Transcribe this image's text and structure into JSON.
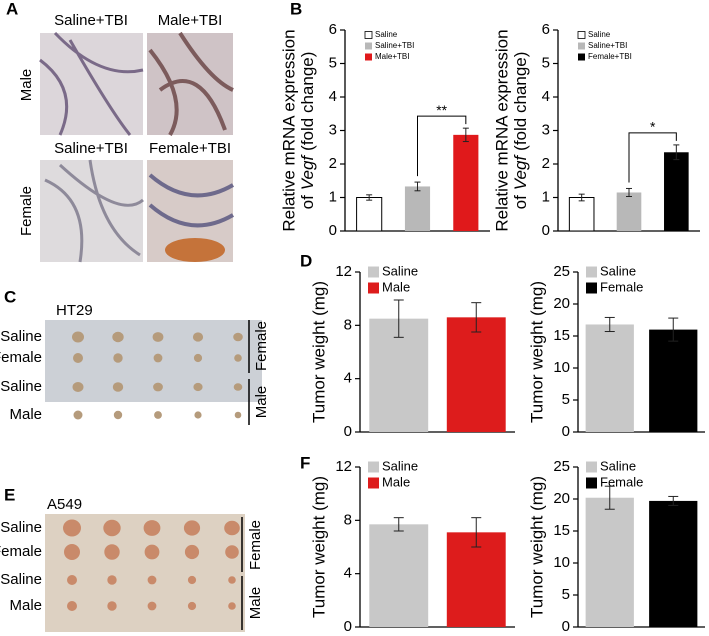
{
  "figure": {
    "panel_letters": [
      "A",
      "B",
      "C",
      "D",
      "E",
      "F"
    ],
    "panel_a": {
      "titles": [
        "Saline+TBI",
        "Male+TBI",
        "Saline+TBI",
        "Female+TBI"
      ],
      "rows": [
        "Male",
        "Female"
      ]
    },
    "panel_c": {
      "cell_line": "HT29",
      "rows": [
        "Saline",
        "Female",
        "Saline",
        "Male"
      ],
      "groups": [
        "Female",
        "Male"
      ]
    },
    "panel_e": {
      "cell_line": "A549",
      "rows": [
        "Saline",
        "Female",
        "Saline",
        "Male"
      ],
      "groups": [
        "Female",
        "Male"
      ]
    }
  },
  "chart_data": [
    {
      "type": "bar",
      "y_label": [
        "Relative mRNA expression",
        "of",
        "Vegf",
        "(fold change)"
      ],
      "ylim": [
        0,
        6
      ],
      "yticks": [
        0,
        1,
        2,
        3,
        4,
        5,
        6
      ],
      "annotation": "**",
      "series": [
        {
          "name": "Saline",
          "color": "#ffffff",
          "values": [
            1.0
          ],
          "errors": [
            0.08
          ]
        },
        {
          "name": "Saline+TBI",
          "color": "#b8b8b8",
          "values": [
            1.33
          ],
          "errors": [
            0.13
          ]
        },
        {
          "name": "Male+TBI",
          "color": "#e0191b",
          "values": [
            2.87
          ],
          "errors": [
            0.2
          ]
        }
      ]
    },
    {
      "type": "bar",
      "y_label": [
        "Relative mRNA expression",
        "of",
        "Vegf",
        "(fold change)"
      ],
      "ylim": [
        0,
        6
      ],
      "yticks": [
        0,
        1,
        2,
        3,
        4,
        5,
        6
      ],
      "annotation": "*",
      "series": [
        {
          "name": "Saline",
          "color": "#ffffff",
          "values": [
            1.0
          ],
          "errors": [
            0.1
          ]
        },
        {
          "name": "Saline+TBI",
          "color": "#b8b8b8",
          "values": [
            1.15
          ],
          "errors": [
            0.12
          ]
        },
        {
          "name": "Female+TBI",
          "color": "#000000",
          "values": [
            2.35
          ],
          "errors": [
            0.22
          ]
        }
      ]
    },
    {
      "type": "bar",
      "y_label": [
        "Tumor weight (mg)"
      ],
      "ylim": [
        0,
        12
      ],
      "yticks": [
        0,
        4,
        8,
        12
      ],
      "series": [
        {
          "name": "Saline",
          "color": "#c8c8c8",
          "values": [
            8.5
          ],
          "errors": [
            1.4
          ]
        },
        {
          "name": "Male",
          "color": "#dd1c1c",
          "values": [
            8.6
          ],
          "errors": [
            1.1
          ]
        }
      ]
    },
    {
      "type": "bar",
      "y_label": [
        "Tumor weight (mg)"
      ],
      "ylim": [
        0,
        25
      ],
      "yticks": [
        0,
        5,
        10,
        15,
        20,
        25
      ],
      "series": [
        {
          "name": "Saline",
          "color": "#c8c8c8",
          "values": [
            16.8
          ],
          "errors": [
            1.1
          ]
        },
        {
          "name": "Female",
          "color": "#000000",
          "values": [
            16.0
          ],
          "errors": [
            1.8
          ]
        }
      ]
    },
    {
      "type": "bar",
      "y_label": [
        "Tumor weight (mg)"
      ],
      "ylim": [
        0,
        12
      ],
      "yticks": [
        0,
        4,
        8,
        12
      ],
      "series": [
        {
          "name": "Saline",
          "color": "#c8c8c8",
          "values": [
            7.7
          ],
          "errors": [
            0.5
          ]
        },
        {
          "name": "Male",
          "color": "#dd1c1c",
          "values": [
            7.1
          ],
          "errors": [
            1.1
          ]
        }
      ]
    },
    {
      "type": "bar",
      "y_label": [
        "Tumor weight (mg)"
      ],
      "ylim": [
        0,
        25
      ],
      "yticks": [
        0,
        5,
        10,
        15,
        20,
        25
      ],
      "series": [
        {
          "name": "Saline",
          "color": "#c8c8c8",
          "values": [
            20.2
          ],
          "errors": [
            1.8
          ]
        },
        {
          "name": "Female",
          "color": "#000000",
          "values": [
            19.7
          ],
          "errors": [
            0.7
          ]
        }
      ]
    }
  ]
}
